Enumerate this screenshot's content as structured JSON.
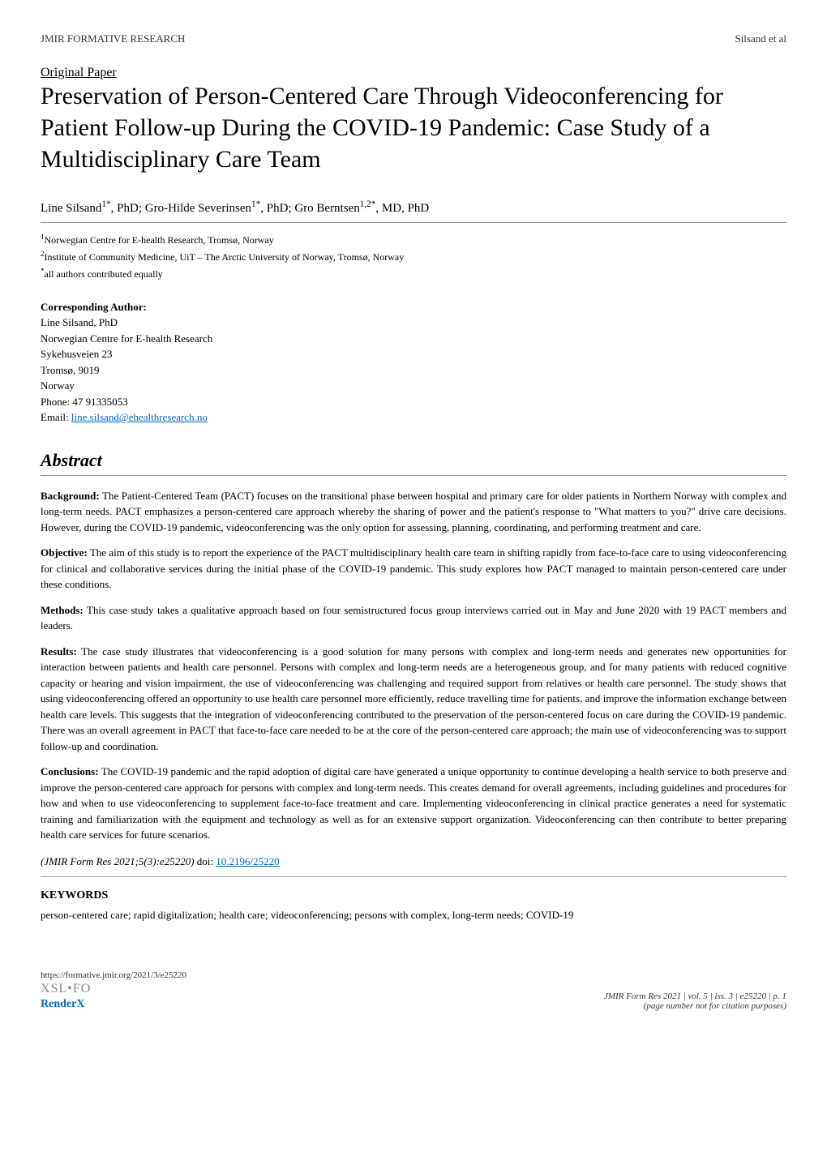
{
  "header": {
    "journal": "JMIR FORMATIVE RESEARCH",
    "authors_short": "Silsand et al"
  },
  "paper_type": "Original Paper",
  "title": "Preservation of Person-Centered Care Through Videoconferencing for Patient Follow-up During the COVID-19 Pandemic: Case Study of a Multidisciplinary Care Team",
  "authors": "Line Silsand",
  "authors_rest": ", PhD; Gro-Hilde Severinsen",
  "authors_rest2": ", PhD; Gro Berntsen",
  "authors_rest3": ", MD, PhD",
  "sup1": "1*",
  "sup2": "1*",
  "sup3": "1,2*",
  "affiliations": {
    "aff1_num": "1",
    "aff1": "Norwegian Centre for E-health Research, Tromsø, Norway",
    "aff2_num": "2",
    "aff2": "Institute of Community Medicine, UiT – The Arctic University of Norway, Tromsø, Norway",
    "aff3_num": "*",
    "aff3": "all authors contributed equally"
  },
  "corresponding": {
    "label": "Corresponding Author:",
    "name": "Line Silsand, PhD",
    "org": "Norwegian Centre for E-health Research",
    "addr1": "Sykehusveien 23",
    "addr2": "Tromsø, 9019",
    "country": "Norway",
    "phone": "Phone: 47 91335053",
    "email_label": "Email: ",
    "email": "line.silsand@ehealthresearch.no"
  },
  "abstract_heading": "Abstract",
  "sections": {
    "background_label": "Background:",
    "background": " The Patient-Centered Team (PACT) focuses on the transitional phase between hospital and primary care for older patients in Northern Norway with complex and long-term needs. PACT emphasizes a person-centered care approach whereby the sharing of power and the patient's response to \"What matters to you?\" drive care decisions. However, during the COVID-19 pandemic, videoconferencing was the only option for assessing, planning, coordinating, and performing treatment and care.",
    "objective_label": "Objective:",
    "objective": " The aim of this study is to report the experience of the PACT multidisciplinary health care team in shifting rapidly from face-to-face care to using videoconferencing for clinical and collaborative services during the initial phase of the COVID-19 pandemic. This study explores how PACT managed to maintain person-centered care under these conditions.",
    "methods_label": "Methods:",
    "methods": " This case study takes a qualitative approach based on four semistructured focus group interviews carried out in May and June 2020 with 19 PACT members and leaders.",
    "results_label": "Results:",
    "results": " The case study illustrates that videoconferencing is a good solution for many persons with complex and long-term needs and generates new opportunities for interaction between patients and health care personnel. Persons with complex and long-term needs are a heterogeneous group, and for many patients with reduced cognitive capacity or hearing and vision impairment, the use of videoconferencing was challenging and required support from relatives or health care personnel. The study shows that using videoconferencing offered an opportunity to use health care personnel more efficiently, reduce travelling time for patients, and improve the information exchange between health care levels. This suggests that the integration of videoconferencing contributed to the preservation of the person-centered focus on care during the COVID-19 pandemic. There was an overall agreement in PACT that face-to-face care needed to be at the core of the person-centered care approach; the main use of videoconferencing was to support follow-up and coordination.",
    "conclusions_label": "Conclusions:",
    "conclusions": " The COVID-19 pandemic and the rapid adoption of digital care have generated a unique opportunity to continue developing a health service to both preserve and improve the person-centered care approach for persons with complex and long-term needs. This creates demand for overall agreements, including guidelines and procedures for how and when to use videoconferencing to supplement face-to-face treatment and care. Implementing videoconferencing in clinical practice generates a need for systematic training and familiarization with the equipment and technology as well as for an extensive support organization. Videoconferencing can then contribute to better preparing health care services for future scenarios."
  },
  "citation": {
    "ref": "(JMIR Form Res 2021;5(3):e25220)",
    "doi_label": " doi: ",
    "doi": "10.2196/25220"
  },
  "keywords": {
    "heading": "KEYWORDS",
    "text": "person-centered care; rapid digitalization; health care; videoconferencing; persons with complex, long-term needs; COVID-19"
  },
  "footer": {
    "url": "https://formative.jmir.org/2021/3/e25220",
    "xsl": "XSL•FO",
    "renderx": "RenderX",
    "right1": "JMIR Form Res 2021 | vol. 5 | iss. 3 | e25220 | p. 1",
    "right2": "(page number not for citation purposes)"
  }
}
